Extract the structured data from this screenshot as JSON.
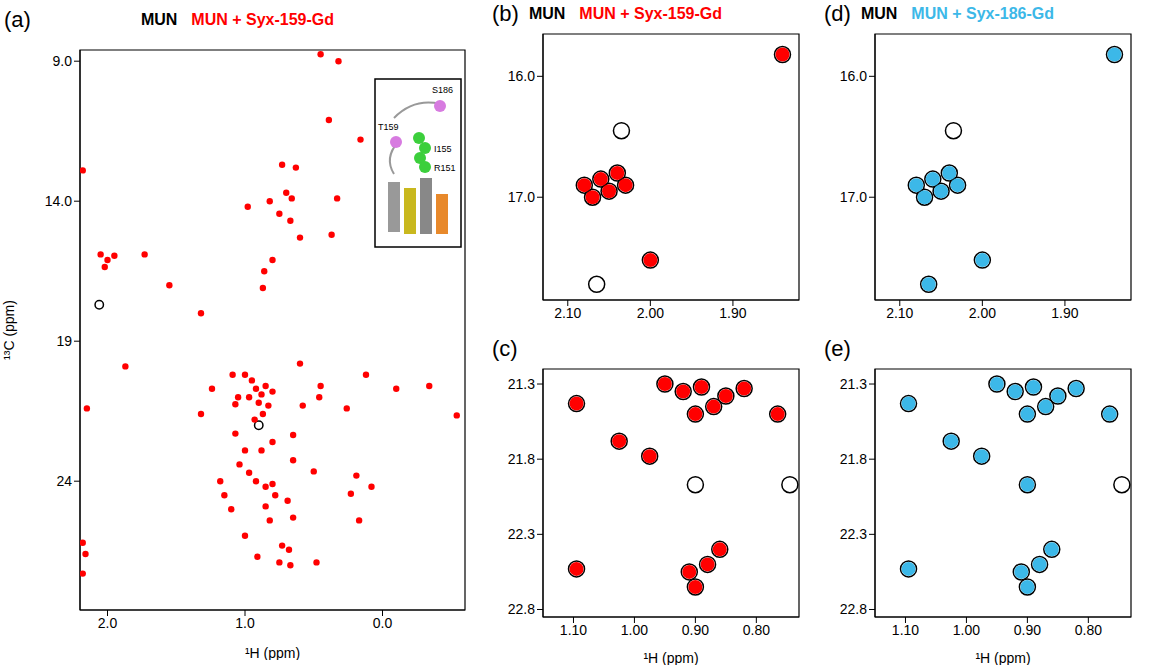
{
  "chart_data": [
    {
      "type": "scatter",
      "title": "(a)",
      "x_label": "¹H (ppm)",
      "y_label": "¹³C (ppm)",
      "legend": "top",
      "xlim": [
        2.2,
        -0.6
      ],
      "ylim": [
        28.6,
        8.6
      ],
      "xticks": [
        {
          "value": 2,
          "label": "2.0"
        },
        {
          "value": 1,
          "label": "1.0"
        },
        {
          "value": 0,
          "label": "0.0"
        }
      ],
      "yticks": [
        {
          "value": 9,
          "label": "9.0"
        },
        {
          "value": 14,
          "label": "14.0"
        },
        19.0,
        24.0
      ],
      "annotations": [
        "S186",
        "T159",
        "I155",
        "R151"
      ],
      "series": [
        {
          "name": "MUN",
          "color": "#000000",
          "x": [
            2.06,
            0.9
          ],
          "y": [
            17.7,
            22.0
          ]
        },
        {
          "name": "MUN + Syx-159-Gd",
          "color": "#ff0000",
          "x": [
            0.45,
            0.32,
            0.39,
            0.16,
            0.73,
            0.63,
            2.18,
            0.7,
            0.66,
            0.33,
            0.82,
            0.98,
            0.75,
            0.67,
            0.37,
            0.6,
            2.05,
            2.0,
            1.95,
            2.02,
            1.73,
            0.8,
            0.86,
            1.55,
            0.87,
            1.32,
            1.87,
            0.6,
            1.09,
            1.0,
            0.95,
            0.92,
            0.88,
            0.85,
            0.8,
            0.97,
            1.05,
            0.9,
            0.83,
            0.87,
            0.93,
            1.24,
            1.07,
            1.32,
            2.15,
            0.58,
            0.46,
            0.45,
            0.26,
            0.12,
            -0.1,
            -0.34,
            -0.54,
            1.07,
            1.0,
            1.04,
            0.88,
            0.8,
            0.65,
            0.97,
            0.92,
            0.85,
            0.8,
            0.78,
            0.85,
            0.82,
            0.65,
            0.69,
            0.5,
            0.65,
            0.19,
            0.23,
            0.08,
            0.17,
            1.18,
            1.15,
            1.1,
            2.18,
            2.16,
            2.18,
            1.0,
            0.91,
            0.73,
            0.75,
            0.67,
            0.48,
            0.68
          ],
          "y": [
            8.75,
            9.0,
            11.1,
            11.8,
            12.7,
            12.8,
            12.9,
            13.7,
            13.9,
            13.9,
            14.0,
            14.2,
            14.45,
            14.7,
            15.2,
            15.3,
            15.9,
            16.1,
            15.95,
            16.35,
            15.9,
            16.1,
            16.5,
            17.0,
            17.1,
            18.0,
            19.9,
            19.8,
            20.2,
            20.2,
            20.4,
            20.7,
            20.9,
            20.6,
            20.8,
            21.0,
            21.0,
            21.2,
            21.3,
            21.6,
            21.8,
            20.7,
            21.25,
            21.6,
            21.4,
            21.3,
            21.0,
            20.6,
            21.4,
            20.2,
            20.7,
            20.6,
            21.65,
            22.3,
            22.9,
            23.4,
            22.9,
            22.6,
            22.35,
            23.7,
            24.0,
            24.2,
            24.1,
            24.5,
            24.9,
            25.4,
            25.3,
            24.7,
            23.65,
            23.25,
            23.8,
            24.45,
            24.2,
            25.4,
            24.0,
            24.5,
            25.0,
            26.2,
            26.6,
            27.3,
            25.95,
            26.7,
            26.3,
            26.9,
            27.0,
            26.9,
            26.45
          ]
        }
      ]
    },
    {
      "type": "scatter",
      "title": "(b)",
      "legend": "top",
      "xlim": [
        2.13,
        1.82
      ],
      "ylim": [
        17.85,
        15.65
      ],
      "xticks": [
        {
          "value": 2.1,
          "label": "2.10"
        },
        {
          "value": 2,
          "label": "2.00"
        },
        {
          "value": 1.9,
          "label": "1.90"
        }
      ],
      "yticks": [
        {
          "value": 16,
          "label": "16.0"
        },
        {
          "value": 17,
          "label": "17.0"
        }
      ],
      "series": [
        {
          "name": "MUN",
          "color": "#000000",
          "x": [
            1.84,
            2.08,
            2.06,
            2.05,
            2.03,
            2.07,
            2.04,
            2.0,
            2.065,
            2.035
          ],
          "y": [
            15.82,
            16.9,
            16.85,
            16.95,
            16.9,
            17.0,
            16.8,
            17.52,
            17.72,
            16.45
          ]
        },
        {
          "name": "MUN + Syx-159-Gd",
          "color": "#ff0000",
          "x": [
            1.84,
            2.08,
            2.06,
            2.05,
            2.03,
            2.07,
            2.04,
            2.0
          ],
          "y": [
            15.82,
            16.9,
            16.85,
            16.95,
            16.9,
            17.0,
            16.8,
            17.52
          ]
        }
      ]
    },
    {
      "type": "scatter",
      "title": "(c)",
      "x_label": "¹H (ppm)",
      "xlim": [
        1.15,
        0.73
      ],
      "ylim": [
        22.85,
        21.2
      ],
      "xticks": [
        {
          "value": 1.1,
          "label": "1.10"
        },
        {
          "value": 1,
          "label": "1.00"
        },
        {
          "value": 0.9,
          "label": "0.90"
        },
        {
          "value": 0.8,
          "label": "0.80"
        }
      ],
      "yticks": [
        21.3,
        21.8,
        22.3,
        22.8
      ],
      "series": [
        {
          "name": "MUN",
          "color": "#000000",
          "x": [
            1.095,
            0.95,
            0.92,
            0.89,
            0.87,
            0.9,
            0.85,
            0.82,
            1.025,
            0.975,
            0.765,
            1.095,
            0.91,
            0.88,
            0.86,
            0.9,
            0.9,
            0.745
          ],
          "y": [
            21.43,
            21.3,
            21.35,
            21.32,
            21.45,
            21.5,
            21.38,
            21.33,
            21.68,
            21.78,
            21.5,
            22.53,
            22.55,
            22.5,
            22.4,
            22.65,
            21.97,
            21.97
          ]
        },
        {
          "name": "MUN + Syx-159-Gd",
          "color": "#ff0000",
          "x": [
            1.095,
            0.95,
            0.92,
            0.89,
            0.87,
            0.9,
            0.85,
            0.82,
            1.025,
            0.975,
            0.765,
            1.095,
            0.91,
            0.88,
            0.86,
            0.9
          ],
          "y": [
            21.43,
            21.3,
            21.35,
            21.32,
            21.45,
            21.5,
            21.38,
            21.33,
            21.68,
            21.78,
            21.5,
            22.53,
            22.55,
            22.5,
            22.4,
            22.65
          ]
        }
      ]
    },
    {
      "type": "scatter",
      "title": "(d)",
      "legend": "top",
      "xlim": [
        2.13,
        1.82
      ],
      "ylim": [
        17.85,
        15.65
      ],
      "xticks": [
        {
          "value": 2.1,
          "label": "2.10"
        },
        {
          "value": 2,
          "label": "2.00"
        },
        {
          "value": 1.9,
          "label": "1.90"
        }
      ],
      "yticks": [
        {
          "value": 16,
          "label": "16.0"
        },
        {
          "value": 17,
          "label": "17.0"
        }
      ],
      "series": [
        {
          "name": "MUN",
          "color": "#000000",
          "x": [
            1.84,
            2.08,
            2.06,
            2.05,
            2.03,
            2.07,
            2.04,
            2.0,
            2.065,
            2.035
          ],
          "y": [
            15.82,
            16.9,
            16.85,
            16.95,
            16.9,
            17.0,
            16.8,
            17.52,
            17.72,
            16.45
          ]
        },
        {
          "name": "MUN + Syx-186-Gd",
          "color": "#3cb8e8",
          "x": [
            1.84,
            2.08,
            2.06,
            2.05,
            2.03,
            2.07,
            2.04,
            2.0,
            2.065
          ],
          "y": [
            15.82,
            16.9,
            16.85,
            16.95,
            16.9,
            17.0,
            16.8,
            17.52,
            17.72
          ]
        }
      ]
    },
    {
      "type": "scatter",
      "title": "(e)",
      "x_label": "¹H (ppm)",
      "xlim": [
        1.15,
        0.73
      ],
      "ylim": [
        22.85,
        21.2
      ],
      "xticks": [
        {
          "value": 1.1,
          "label": "1.10"
        },
        {
          "value": 1,
          "label": "1.00"
        },
        {
          "value": 0.9,
          "label": "0.90"
        },
        {
          "value": 0.8,
          "label": "0.80"
        }
      ],
      "yticks": [
        21.3,
        21.8,
        22.3,
        22.8
      ],
      "series": [
        {
          "name": "MUN",
          "color": "#000000",
          "x": [
            1.095,
            0.95,
            0.92,
            0.89,
            0.87,
            0.9,
            0.85,
            0.82,
            1.025,
            0.975,
            0.765,
            1.095,
            0.91,
            0.88,
            0.86,
            0.9,
            0.9,
            0.745
          ],
          "y": [
            21.43,
            21.3,
            21.35,
            21.32,
            21.45,
            21.5,
            21.38,
            21.33,
            21.68,
            21.78,
            21.5,
            22.53,
            22.55,
            22.5,
            22.4,
            22.65,
            21.97,
            21.97
          ]
        },
        {
          "name": "MUN + Syx-186-Gd",
          "color": "#3cb8e8",
          "x": [
            1.095,
            0.95,
            0.92,
            0.89,
            0.87,
            0.9,
            0.85,
            0.82,
            1.025,
            0.975,
            0.765,
            1.095,
            0.91,
            0.88,
            0.86,
            0.9,
            0.9
          ],
          "y": [
            21.43,
            21.3,
            21.35,
            21.32,
            21.45,
            21.5,
            21.38,
            21.33,
            21.68,
            21.78,
            21.5,
            22.53,
            22.55,
            22.5,
            22.4,
            22.65,
            21.97
          ]
        }
      ]
    }
  ]
}
